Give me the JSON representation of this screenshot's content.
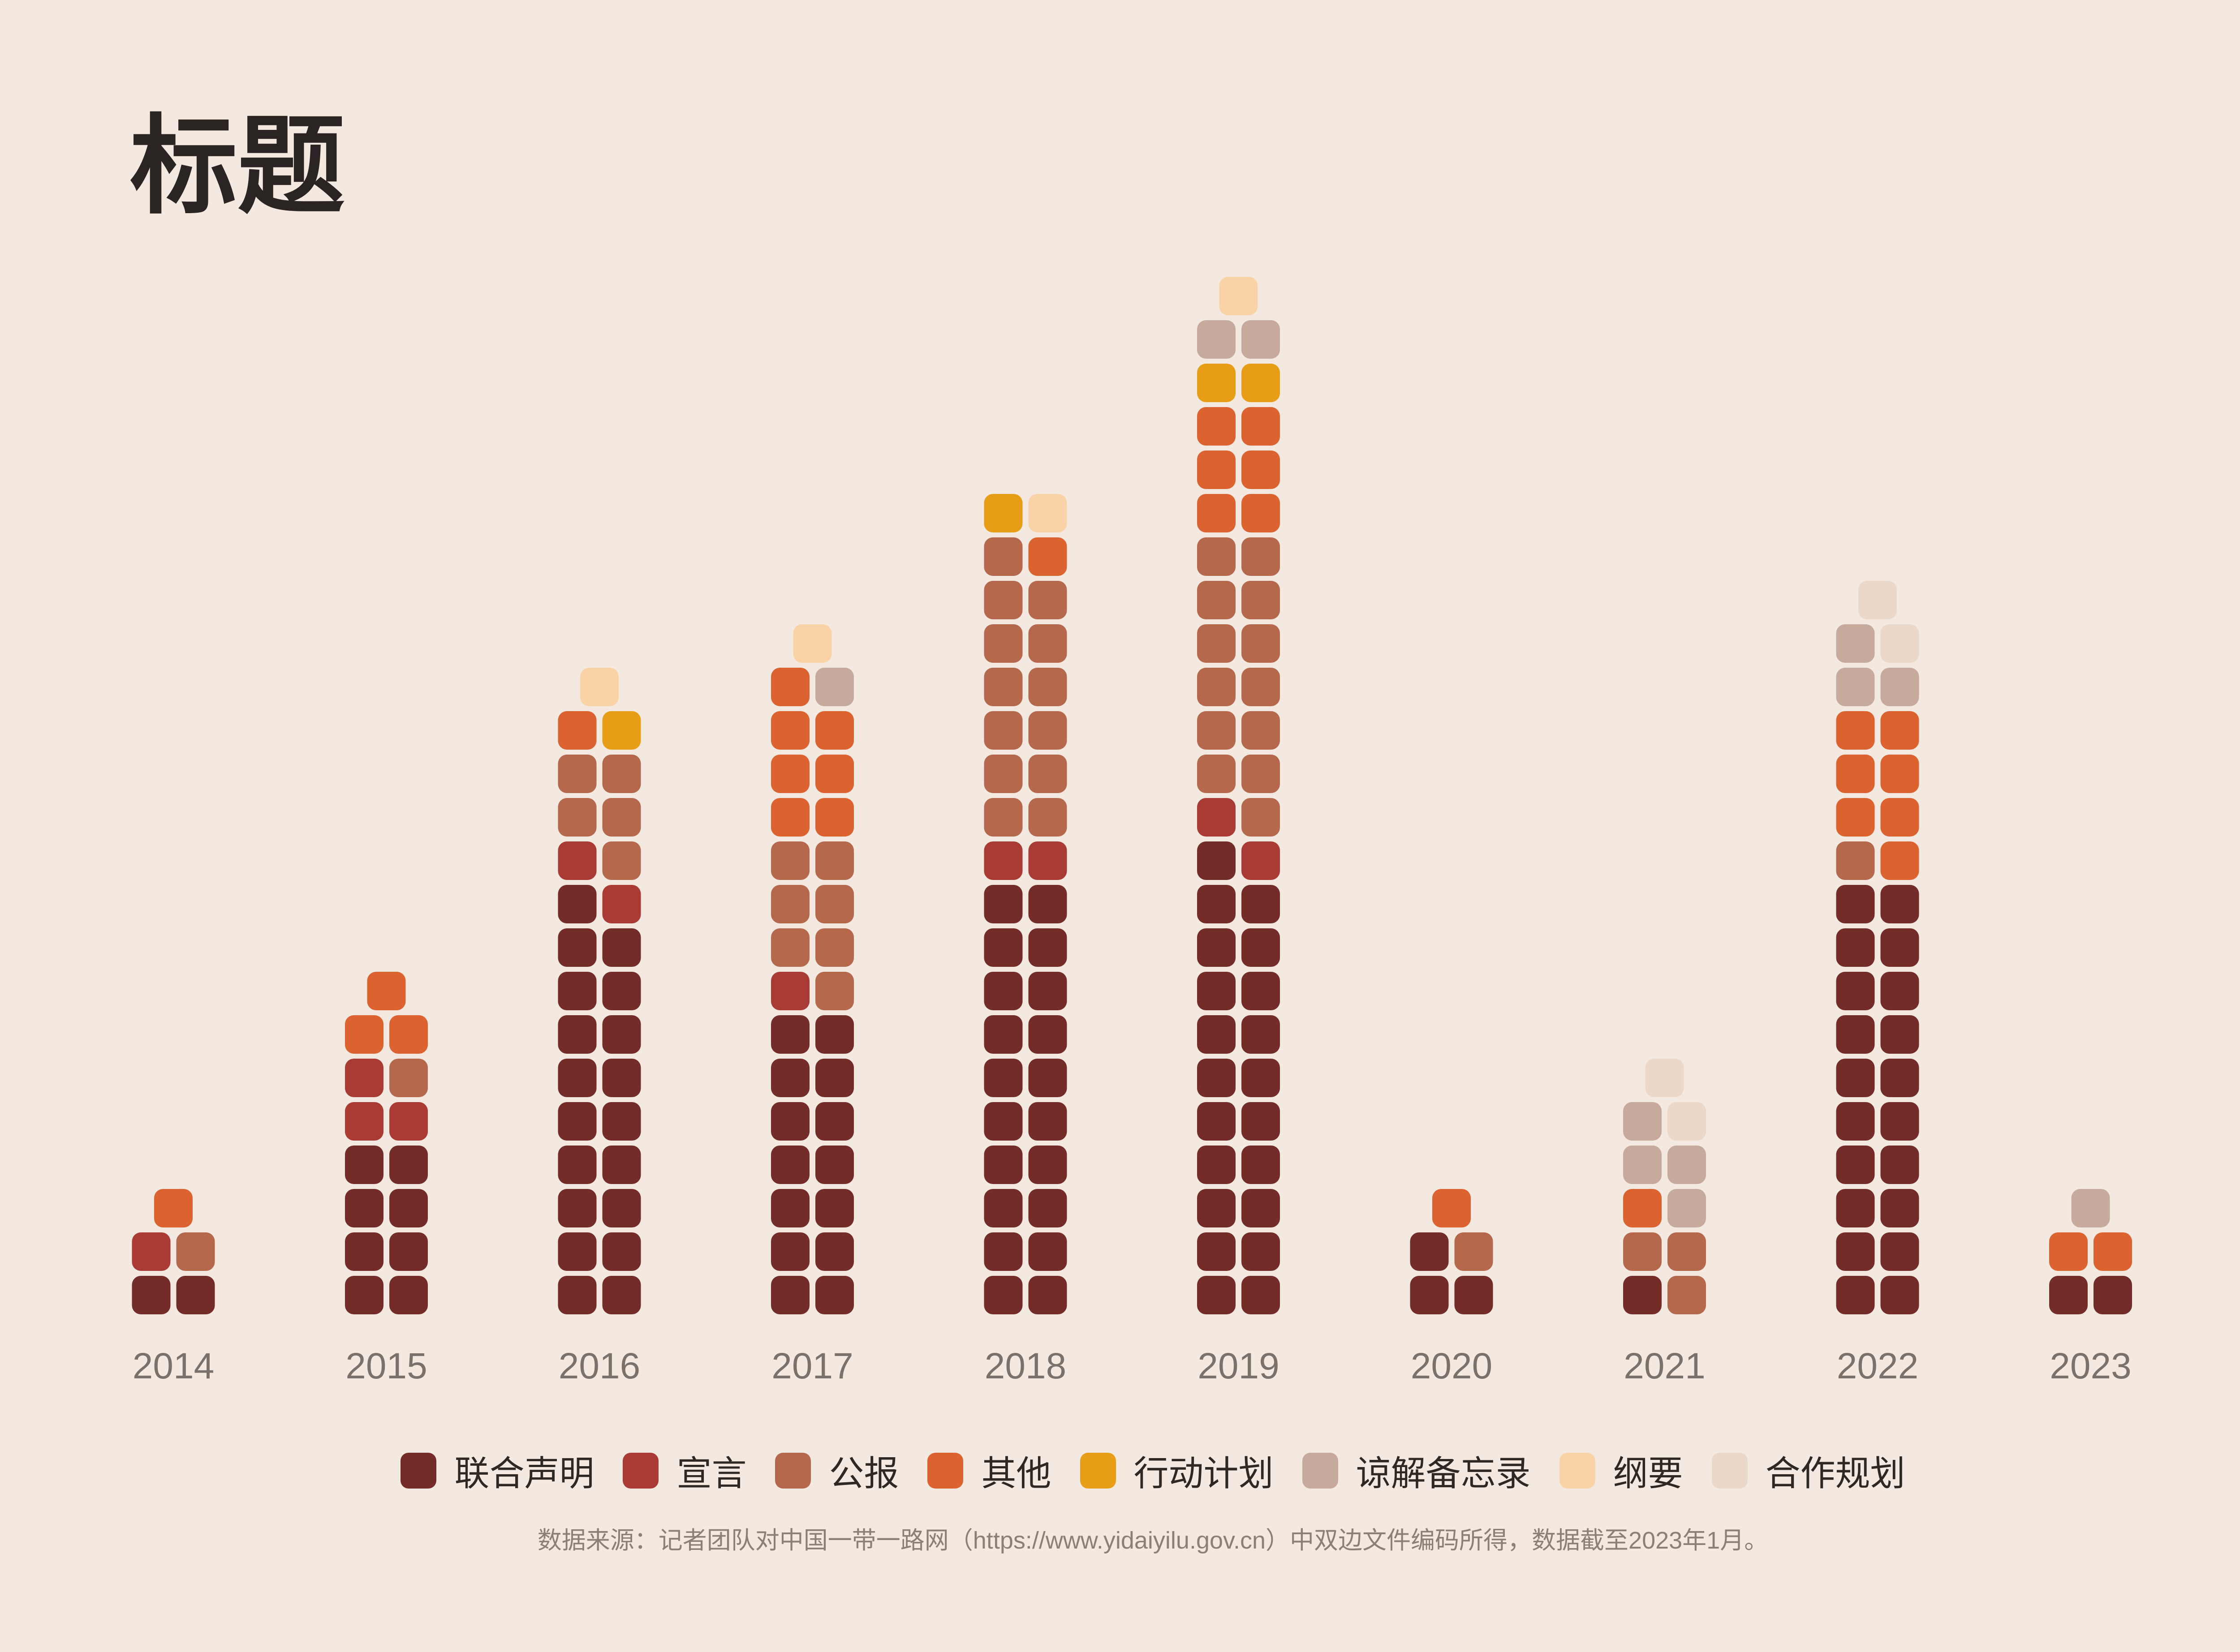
{
  "title": "标题",
  "source_note": "数据来源：记者团队对中国一带一路网（https://www.yidaiyilu.gov.cn）中双边文件编码所得，数据截至2023年1月。",
  "chart_data": {
    "type": "bar",
    "subtype": "stacked-unit-waffle",
    "categories": [
      "2014",
      "2015",
      "2016",
      "2017",
      "2018",
      "2019",
      "2020",
      "2021",
      "2022",
      "2023"
    ],
    "series": [
      {
        "name": "联合声明",
        "color": "#732c28",
        "values": [
          2,
          8,
          19,
          14,
          20,
          21,
          3,
          1,
          20,
          2
        ]
      },
      {
        "name": "宣言",
        "color": "#a93a34",
        "values": [
          1,
          3,
          2,
          1,
          2,
          2,
          0,
          0,
          0,
          0
        ]
      },
      {
        "name": "公报",
        "color": "#b5684b",
        "values": [
          1,
          1,
          5,
          7,
          13,
          13,
          1,
          3,
          1,
          0
        ]
      },
      {
        "name": "其他",
        "color": "#dc6230",
        "values": [
          1,
          3,
          1,
          7,
          1,
          6,
          1,
          1,
          7,
          2
        ]
      },
      {
        "name": "行动计划",
        "color": "#e79d16",
        "values": [
          0,
          0,
          1,
          0,
          1,
          2,
          0,
          0,
          0,
          0
        ]
      },
      {
        "name": "谅解备忘录",
        "color": "#c6ab9d",
        "values": [
          0,
          0,
          0,
          1,
          0,
          2,
          0,
          4,
          3,
          1
        ]
      },
      {
        "name": "纲要",
        "color": "#f9d3a6",
        "values": [
          0,
          0,
          1,
          1,
          1,
          1,
          0,
          0,
          0,
          0
        ]
      },
      {
        "name": "合作规划",
        "color": "#ecd8c8",
        "values": [
          0,
          0,
          0,
          0,
          0,
          0,
          0,
          2,
          2,
          0
        ]
      }
    ],
    "units_per_row": 2,
    "legend_position": "bottom-center",
    "grid": false
  }
}
